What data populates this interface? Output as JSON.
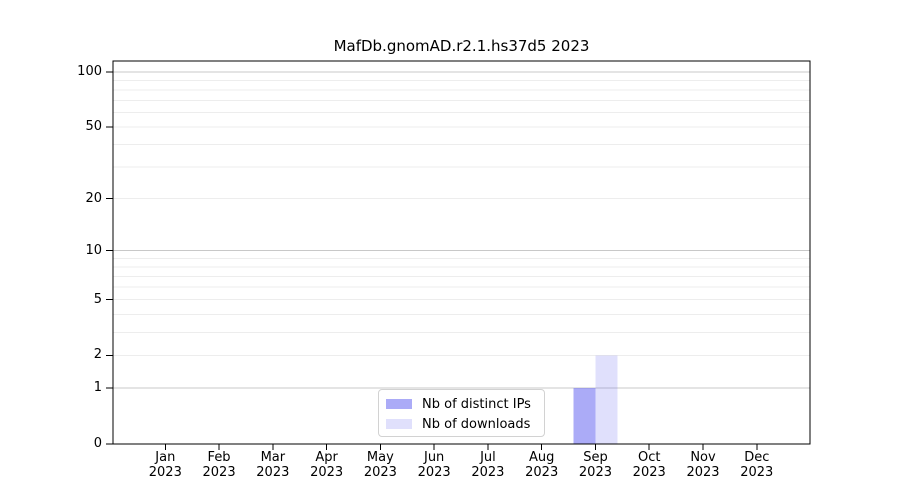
{
  "chart_data": {
    "type": "bar",
    "title": "MafDb.gnomAD.r2.1.hs37d5 2023",
    "categories": [
      "Jan",
      "Feb",
      "Mar",
      "Apr",
      "May",
      "Jun",
      "Jul",
      "Aug",
      "Sep",
      "Oct",
      "Nov",
      "Dec"
    ],
    "year_label": "2023",
    "series": [
      {
        "name": "Nb of distinct IPs",
        "color": "rgba(102,102,240,0.55)",
        "values": [
          0,
          0,
          0,
          0,
          0,
          0,
          0,
          0,
          1,
          0,
          0,
          0
        ]
      },
      {
        "name": "Nb of downloads",
        "color": "rgba(102,102,240,0.20)",
        "values": [
          0,
          0,
          0,
          0,
          0,
          0,
          0,
          0,
          2,
          0,
          0,
          0
        ]
      }
    ],
    "y_axis": {
      "scale": "log1p",
      "ylim": [
        0,
        100
      ],
      "tick_values": [
        0,
        1,
        2,
        5,
        10,
        20,
        50,
        100
      ],
      "major_gridlines": [
        1,
        10,
        100
      ],
      "minor_gridlines": [
        2,
        3,
        4,
        5,
        6,
        7,
        8,
        9,
        20,
        30,
        40,
        50,
        60,
        70,
        80,
        90
      ]
    },
    "legend_position": "bottom-center-inside",
    "grid": true
  },
  "colors": {
    "grid_major": "#c8c8c8",
    "grid_minor": "#ededed",
    "spine": "#000000",
    "tick": "#000000",
    "background": "#ffffff"
  }
}
